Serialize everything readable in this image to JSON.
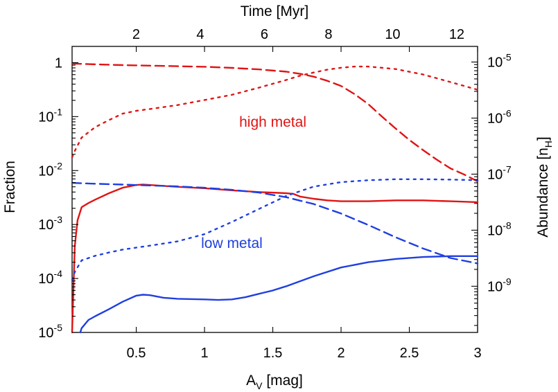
{
  "chart_data": {
    "type": "line",
    "title": "",
    "xlabel": "A",
    "xlabel_sub": "V",
    "xlabel_tail": " [mag]",
    "x2label": "Time [Myr]",
    "ylabel": "Fraction",
    "y2label": "Abundance [n",
    "y2label_sub": "H",
    "y2label_tail": "]",
    "xlim": [
      0.03,
      3.0
    ],
    "x2lim": [
      0.0,
      12.65
    ],
    "ylim": [
      1e-05,
      2.0
    ],
    "y2lim": [
      1.5e-10,
      1.9e-05
    ],
    "yscale": "log",
    "y2scale": "log",
    "grid": false,
    "colors": {
      "high_metal": "#e01414",
      "low_metal": "#1f3fe0"
    },
    "x_ticks": [
      {
        "value": 0.5,
        "label": "0.5"
      },
      {
        "value": 1.0,
        "label": "1"
      },
      {
        "value": 1.5,
        "label": "1.5"
      },
      {
        "value": 2.0,
        "label": "2"
      },
      {
        "value": 2.5,
        "label": "2.5"
      },
      {
        "value": 3.0,
        "label": "3"
      }
    ],
    "x2_ticks": [
      {
        "value": 2,
        "label": "2"
      },
      {
        "value": 4,
        "label": "4"
      },
      {
        "value": 6,
        "label": "6"
      },
      {
        "value": 8,
        "label": "8"
      },
      {
        "value": 10,
        "label": "10"
      },
      {
        "value": 12,
        "label": "12"
      }
    ],
    "y_ticks": [
      {
        "value": 1,
        "base": "1",
        "exp": ""
      },
      {
        "value": 0.1,
        "base": "10",
        "exp": "-1"
      },
      {
        "value": 0.01,
        "base": "10",
        "exp": "-2"
      },
      {
        "value": 0.001,
        "base": "10",
        "exp": "-3"
      },
      {
        "value": 0.0001,
        "base": "10",
        "exp": "-4"
      },
      {
        "value": 1e-05,
        "base": "10",
        "exp": "-5"
      }
    ],
    "y2_ticks": [
      {
        "value": 1e-05,
        "base": "10",
        "exp": "-5"
      },
      {
        "value": 1e-06,
        "base": "10",
        "exp": "-6"
      },
      {
        "value": 1e-07,
        "base": "10",
        "exp": "-7"
      },
      {
        "value": 1e-08,
        "base": "10",
        "exp": "-8"
      },
      {
        "value": 1e-09,
        "base": "10",
        "exp": "-9"
      }
    ],
    "annotations": [
      {
        "text": "high metal",
        "series": "high_metal",
        "x": 1.5,
        "y": 0.065
      },
      {
        "text": "low metal",
        "series": "low_metal",
        "x": 1.2,
        "y": 0.00037
      }
    ],
    "series": [
      {
        "id": "high-metal-fraction",
        "group": "high_metal",
        "style": "dashed",
        "axis": "left",
        "x": [
          0.03,
          0.2,
          0.4,
          0.6,
          0.8,
          1.0,
          1.2,
          1.4,
          1.6,
          1.7,
          1.8,
          1.9,
          2.0,
          2.1,
          2.2,
          2.3,
          2.4,
          2.5,
          2.6,
          2.7,
          2.8,
          2.9,
          3.0
        ],
        "y": [
          0.96,
          0.93,
          0.9,
          0.88,
          0.86,
          0.84,
          0.8,
          0.75,
          0.68,
          0.62,
          0.55,
          0.46,
          0.37,
          0.26,
          0.17,
          0.1,
          0.06,
          0.037,
          0.024,
          0.016,
          0.011,
          0.0085,
          0.0063
        ]
      },
      {
        "id": "high-metal-abundance",
        "group": "high_metal",
        "style": "dotted",
        "axis": "right",
        "x": [
          0.03,
          0.05,
          0.1,
          0.2,
          0.3,
          0.4,
          0.5,
          0.6,
          0.8,
          1.0,
          1.2,
          1.4,
          1.6,
          1.7,
          1.8,
          1.9,
          2.0,
          2.1,
          2.2,
          2.4,
          2.6,
          2.8,
          3.0
        ],
        "y": [
          2e-07,
          2.6e-07,
          4.5e-07,
          6.9e-07,
          9.2e-07,
          1.2e-06,
          1.35e-06,
          1.45e-06,
          1.7e-06,
          2.1e-06,
          2.6e-06,
          3.5e-06,
          4.8e-06,
          5.7e-06,
          6.5e-06,
          7.3e-06,
          7.9e-06,
          8.3e-06,
          8.3e-06,
          7.5e-06,
          6e-06,
          4.4e-06,
          3.2e-06
        ]
      },
      {
        "id": "high-metal-solid",
        "group": "high_metal",
        "style": "solid",
        "axis": "left",
        "x": [
          0.03,
          0.05,
          0.07,
          0.1,
          0.15,
          0.2,
          0.3,
          0.4,
          0.5,
          0.55,
          0.6,
          0.7,
          0.8,
          1.0,
          1.2,
          1.4,
          1.6,
          1.65,
          1.7,
          1.8,
          1.9,
          2.0,
          2.2,
          2.4,
          2.6,
          2.8,
          3.0
        ],
        "y": [
          1e-05,
          0.0004,
          0.0012,
          0.0021,
          0.0025,
          0.0029,
          0.0038,
          0.0048,
          0.0054,
          0.0055,
          0.0054,
          0.0052,
          0.005,
          0.0047,
          0.0043,
          0.004,
          0.0038,
          0.0037,
          0.0033,
          0.003,
          0.0028,
          0.0027,
          0.0027,
          0.0028,
          0.0028,
          0.0027,
          0.0026
        ]
      },
      {
        "id": "low-metal-fraction",
        "group": "low_metal",
        "style": "dashed",
        "axis": "left",
        "x": [
          0.03,
          0.2,
          0.4,
          0.6,
          0.8,
          1.0,
          1.2,
          1.4,
          1.6,
          1.8,
          2.0,
          2.2,
          2.4,
          2.6,
          2.8,
          3.0
        ],
        "y": [
          0.0059,
          0.0057,
          0.0055,
          0.0053,
          0.0051,
          0.0048,
          0.0044,
          0.0039,
          0.0032,
          0.0024,
          0.0016,
          0.00098,
          0.00058,
          0.00036,
          0.00024,
          0.00019
        ]
      },
      {
        "id": "low-metal-abundance",
        "group": "low_metal",
        "style": "dotted",
        "axis": "right",
        "x": [
          0.03,
          0.05,
          0.1,
          0.2,
          0.3,
          0.4,
          0.5,
          0.6,
          0.8,
          1.0,
          1.2,
          1.4,
          1.6,
          1.8,
          2.0,
          2.2,
          2.4,
          2.6,
          2.8,
          3.0
        ],
        "y": [
          1.3e-09,
          1.8e-09,
          2.9e-09,
          3.5e-09,
          4e-09,
          4.5e-09,
          4.9e-09,
          5.3e-09,
          6.3e-09,
          8.5e-09,
          1.4e-08,
          2.4e-08,
          4.1e-08,
          6e-08,
          7.2e-08,
          7.8e-08,
          8.1e-08,
          8.1e-08,
          8e-08,
          7.8e-08
        ]
      },
      {
        "id": "low-metal-solid",
        "group": "low_metal",
        "style": "solid",
        "axis": "left",
        "x": [
          0.09,
          0.1,
          0.15,
          0.2,
          0.3,
          0.4,
          0.5,
          0.55,
          0.6,
          0.7,
          0.8,
          1.0,
          1.1,
          1.2,
          1.3,
          1.4,
          1.5,
          1.6,
          1.8,
          2.0,
          2.2,
          2.4,
          2.6,
          2.8,
          3.0
        ],
        "y": [
          1e-05,
          1.2e-05,
          1.7e-05,
          2e-05,
          2.7e-05,
          3.7e-05,
          4.8e-05,
          5e-05,
          4.9e-05,
          4.4e-05,
          4.2e-05,
          4.1e-05,
          4e-05,
          4.1e-05,
          4.5e-05,
          5.2e-05,
          6e-05,
          7.2e-05,
          0.00011,
          0.00016,
          0.0002,
          0.00023,
          0.00025,
          0.00026,
          0.00026
        ]
      }
    ]
  }
}
